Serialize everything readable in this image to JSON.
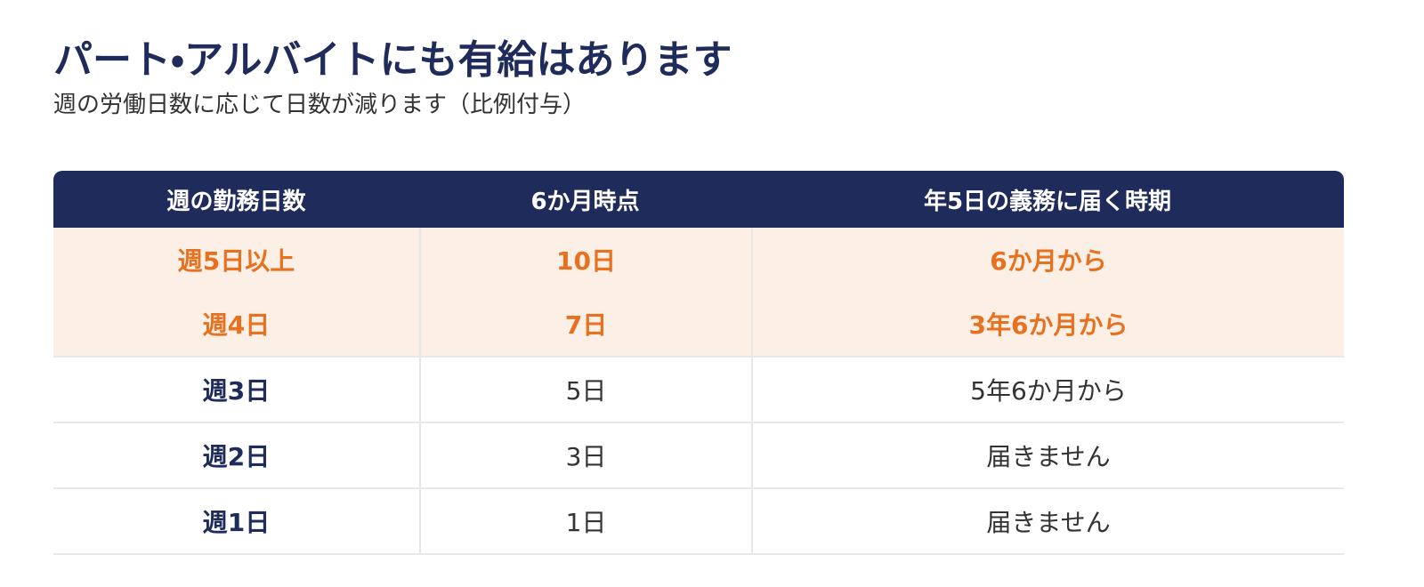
{
  "header": {
    "title": "パート・アルバイトにも有給はあります",
    "subtitle": "週の労働日数に応じて日数が減ります（比例付与）"
  },
  "table": {
    "headers": [
      "週の勤務日数",
      "6か月時点",
      "年5日の義務に届く時期"
    ],
    "rows": [
      [
        "週5日以上",
        "10日",
        "6か月から"
      ],
      [
        "週4日",
        "7日",
        "3年6か月から"
      ],
      [
        "週3日",
        "5日",
        "5年6か月から"
      ],
      [
        "週2日",
        "3日",
        "届きません"
      ],
      [
        "週1日",
        "1日",
        "届きません"
      ]
    ]
  }
}
